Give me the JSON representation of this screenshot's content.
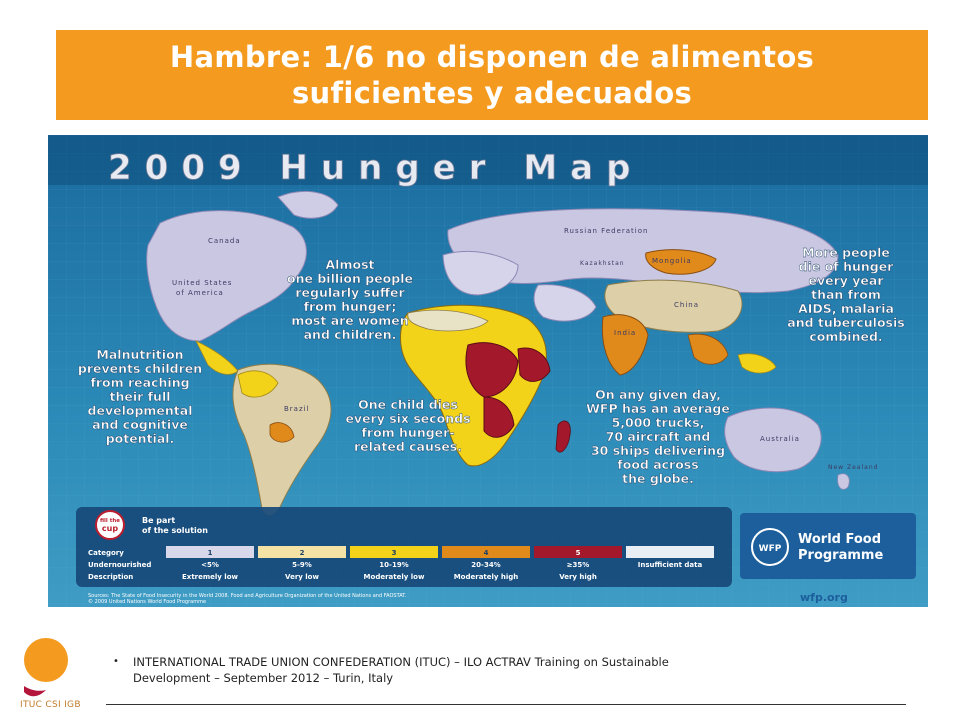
{
  "slide": {
    "title_line1": "Hambre: 1/6 no disponen de alimentos",
    "title_line2": "suficientes y adecuados",
    "bullet_line1": "INTERNATIONAL TRADE UNION CONFEDERATION (ITUC) – ILO ACTRAV Training on Sustainable",
    "bullet_line2": "Development – September 2012 – Turin, Italy",
    "logo_text": "ITUC CSI IGB",
    "accent_color": "#f39a1f"
  },
  "map": {
    "heading": "2009 Hunger Map",
    "countries": {
      "canada": "Canada",
      "usa_1": "United States",
      "usa_2": "of America",
      "russia": "Russian Federation",
      "mongolia": "Mongolia",
      "china": "China",
      "india": "India",
      "brazil": "Brazil",
      "australia": "Australia",
      "newzealand": "New Zealand",
      "kazakhstan": "Kazakhstan"
    },
    "callouts": {
      "billion": [
        "Almost",
        "one billion people",
        "regularly suffer",
        "from hunger;",
        "most are women",
        "and children."
      ],
      "aids": [
        "More people",
        "die of hunger",
        "every year",
        "than from",
        "AIDS, malaria",
        "and tuberculosis",
        "combined."
      ],
      "malnutrition": [
        "Malnutrition",
        "prevents children",
        "from reaching",
        "their full",
        "developmental",
        "and cognitive",
        "potential."
      ],
      "sixseconds": [
        "One child dies",
        "every six seconds",
        "from hunger-",
        "related causes."
      ],
      "wfp": [
        "On any given day,",
        "WFP has an average",
        "5,000 trucks,",
        "70 aircraft and",
        "30 ships delivering",
        "food across",
        "the globe."
      ]
    },
    "fillcup": {
      "badge_1": "fill the",
      "badge_2": "cup",
      "line1": "Be part",
      "line2": "of the solution"
    },
    "legend": {
      "row_labels": [
        "Category",
        "Undernourished",
        "Description"
      ],
      "columns": [
        {
          "category": "1",
          "undernourished": "<5%",
          "description": "Extremely low",
          "color": "#d8d8ea"
        },
        {
          "category": "2",
          "undernourished": "5-9%",
          "description": "Very low",
          "color": "#f4e3a4"
        },
        {
          "category": "3",
          "undernourished": "10-19%",
          "description": "Moderately low",
          "color": "#f3d21a"
        },
        {
          "category": "4",
          "undernourished": "20-34%",
          "description": "Moderately high",
          "color": "#e08a1c"
        },
        {
          "category": "5",
          "undernourished": "≥35%",
          "description": "Very high",
          "color": "#a3192b"
        },
        {
          "category": "",
          "undernourished": "Insufficient data",
          "description": "",
          "color": "#e9eef4"
        }
      ]
    },
    "wfp": {
      "badge": "WFP",
      "name_1": "World Food",
      "name_2": "Programme",
      "url": "wfp.org"
    },
    "sources_1": "Sources: The State of Food Insecurity in the World 2008. Food and Agriculture Organization of the United Nations and FAOSTAT.",
    "sources_2": "© 2009 United Nations World Food Programme"
  }
}
